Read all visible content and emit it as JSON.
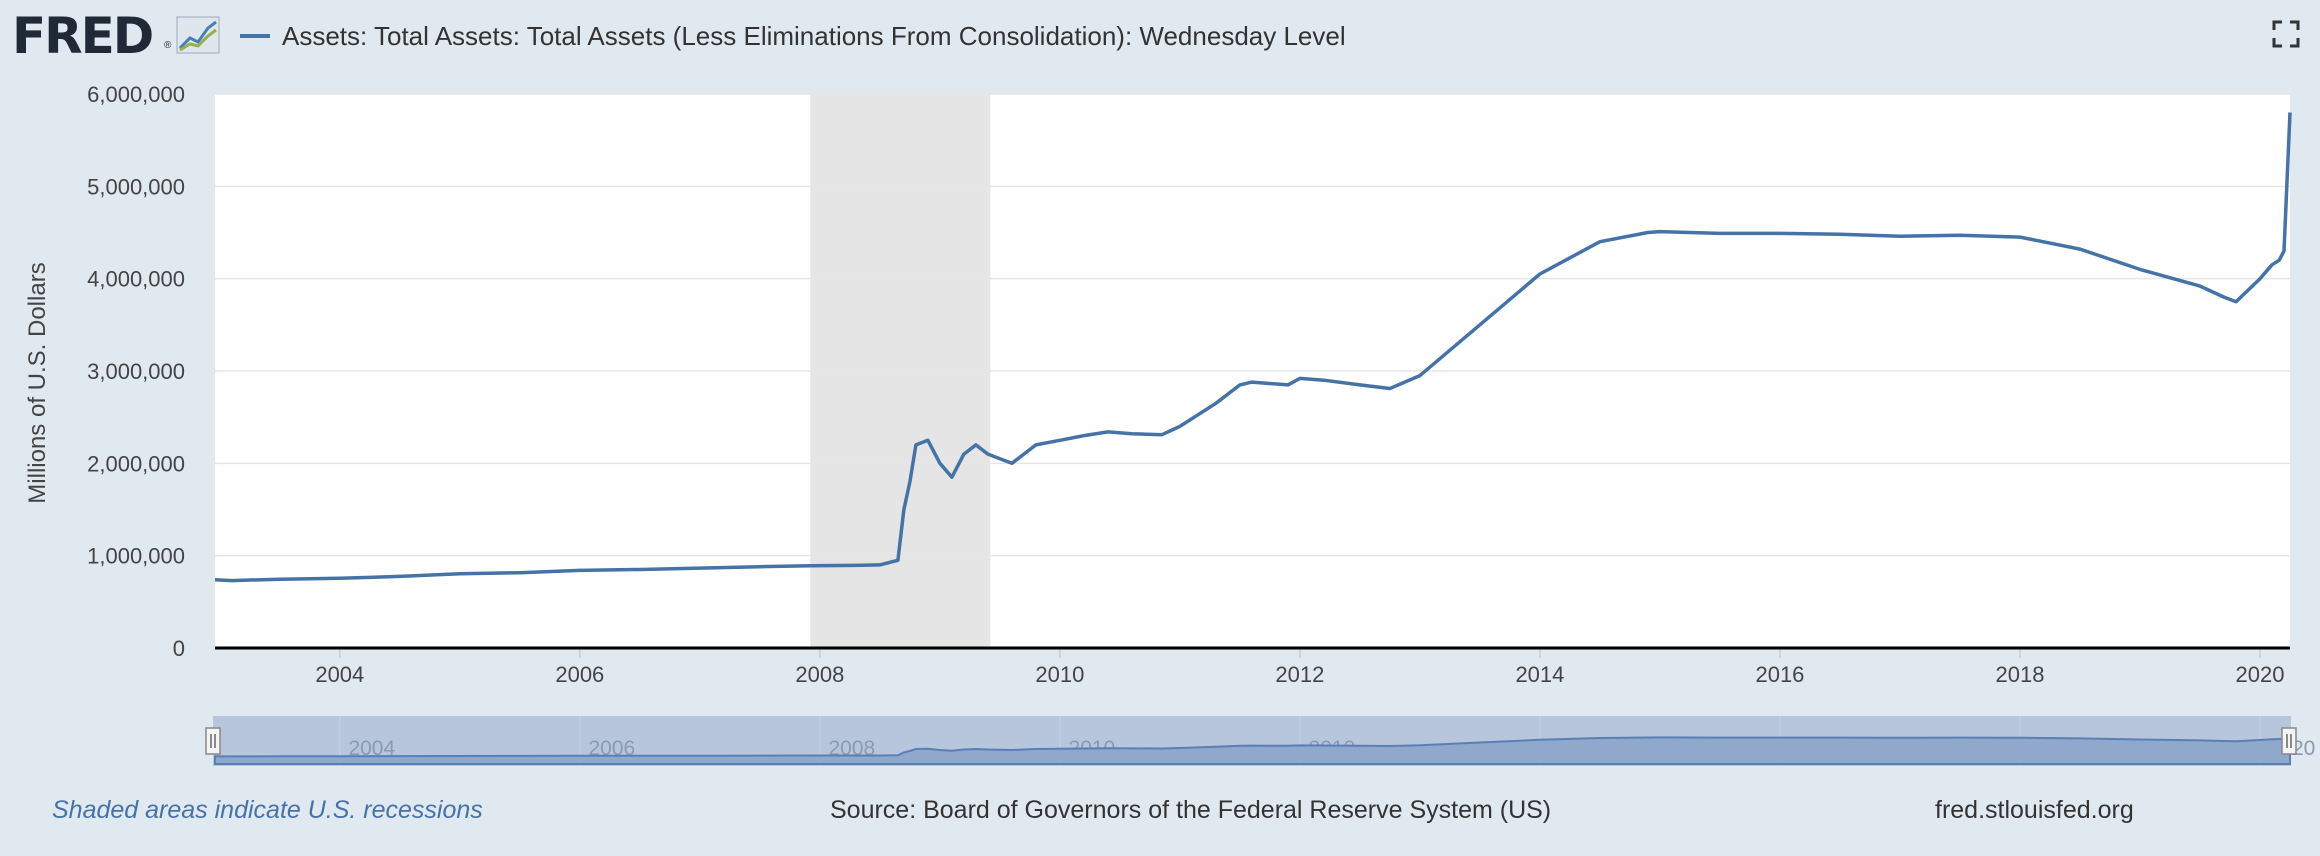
{
  "header": {
    "logo_text": "FRED",
    "logo_mark": "®",
    "series_title": "Assets: Total Assets: Total Assets (Less Eliminations From Consolidation): Wednesday Level",
    "series_color": "#4572a7"
  },
  "icons": {
    "logo_graph": "fred-line-graph-icon",
    "fullscreen": "fullscreen-icon"
  },
  "footer": {
    "recession_note": "Shaded areas indicate U.S. recessions",
    "source": "Source: Board of Governors of the Federal Reserve System (US)",
    "url": "fred.stlouisfed.org"
  },
  "chart_data": {
    "type": "line",
    "title": "Assets: Total Assets: Total Assets (Less Eliminations From Consolidation): Wednesday Level",
    "ylabel": "Millions of U.S. Dollars",
    "xlabel": "",
    "xlim": [
      2002.96,
      2020.25
    ],
    "ylim": [
      0,
      6000000
    ],
    "yticks": [
      "0",
      "1,000,000",
      "2,000,000",
      "3,000,000",
      "4,000,000",
      "5,000,000",
      "6,000,000"
    ],
    "xticks": [
      "2004",
      "2006",
      "2008",
      "2010",
      "2012",
      "2014",
      "2016",
      "2018",
      "2020"
    ],
    "recessions": [
      {
        "start": 2007.92,
        "end": 2009.42
      }
    ],
    "grid": true,
    "series": [
      {
        "name": "Assets: Total Assets: Total Assets (Less Eliminations From Consolidation): Wednesday Level",
        "color": "#4572a7",
        "x": [
          2002.96,
          2003.1,
          2003.5,
          2004.0,
          2004.5,
          2005.0,
          2005.5,
          2006.0,
          2006.5,
          2007.0,
          2007.5,
          2007.92,
          2008.3,
          2008.5,
          2008.65,
          2008.7,
          2008.75,
          2008.8,
          2008.9,
          2009.0,
          2009.1,
          2009.2,
          2009.3,
          2009.4,
          2009.5,
          2009.6,
          2009.7,
          2009.8,
          2010.0,
          2010.2,
          2010.4,
          2010.6,
          2010.85,
          2011.0,
          2011.3,
          2011.5,
          2011.6,
          2011.9,
          2012.0,
          2012.2,
          2012.5,
          2012.75,
          2013.0,
          2013.5,
          2014.0,
          2014.5,
          2014.9,
          2015.0,
          2015.5,
          2016.0,
          2016.5,
          2017.0,
          2017.5,
          2018.0,
          2018.5,
          2019.0,
          2019.5,
          2019.7,
          2019.8,
          2020.0,
          2020.1,
          2020.16,
          2020.2,
          2020.25
        ],
        "values": [
          740000,
          730000,
          745000,
          755000,
          775000,
          805000,
          815000,
          840000,
          850000,
          865000,
          880000,
          890000,
          895000,
          900000,
          950000,
          1500000,
          1800000,
          2200000,
          2250000,
          2000000,
          1850000,
          2100000,
          2200000,
          2100000,
          2050000,
          2000000,
          2100000,
          2200000,
          2250000,
          2300000,
          2340000,
          2320000,
          2310000,
          2400000,
          2650000,
          2850000,
          2880000,
          2850000,
          2920000,
          2900000,
          2850000,
          2810000,
          2950000,
          3500000,
          4050000,
          4400000,
          4500000,
          4510000,
          4490000,
          4490000,
          4480000,
          4460000,
          4470000,
          4450000,
          4320000,
          4100000,
          3920000,
          3800000,
          3750000,
          4000000,
          4150000,
          4200000,
          4300000,
          5800000
        ]
      }
    ],
    "navigator": {
      "xticks": [
        "2004",
        "2006",
        "2008",
        "2010",
        "2012",
        "2014",
        "2016",
        "2018",
        "2020"
      ]
    }
  }
}
